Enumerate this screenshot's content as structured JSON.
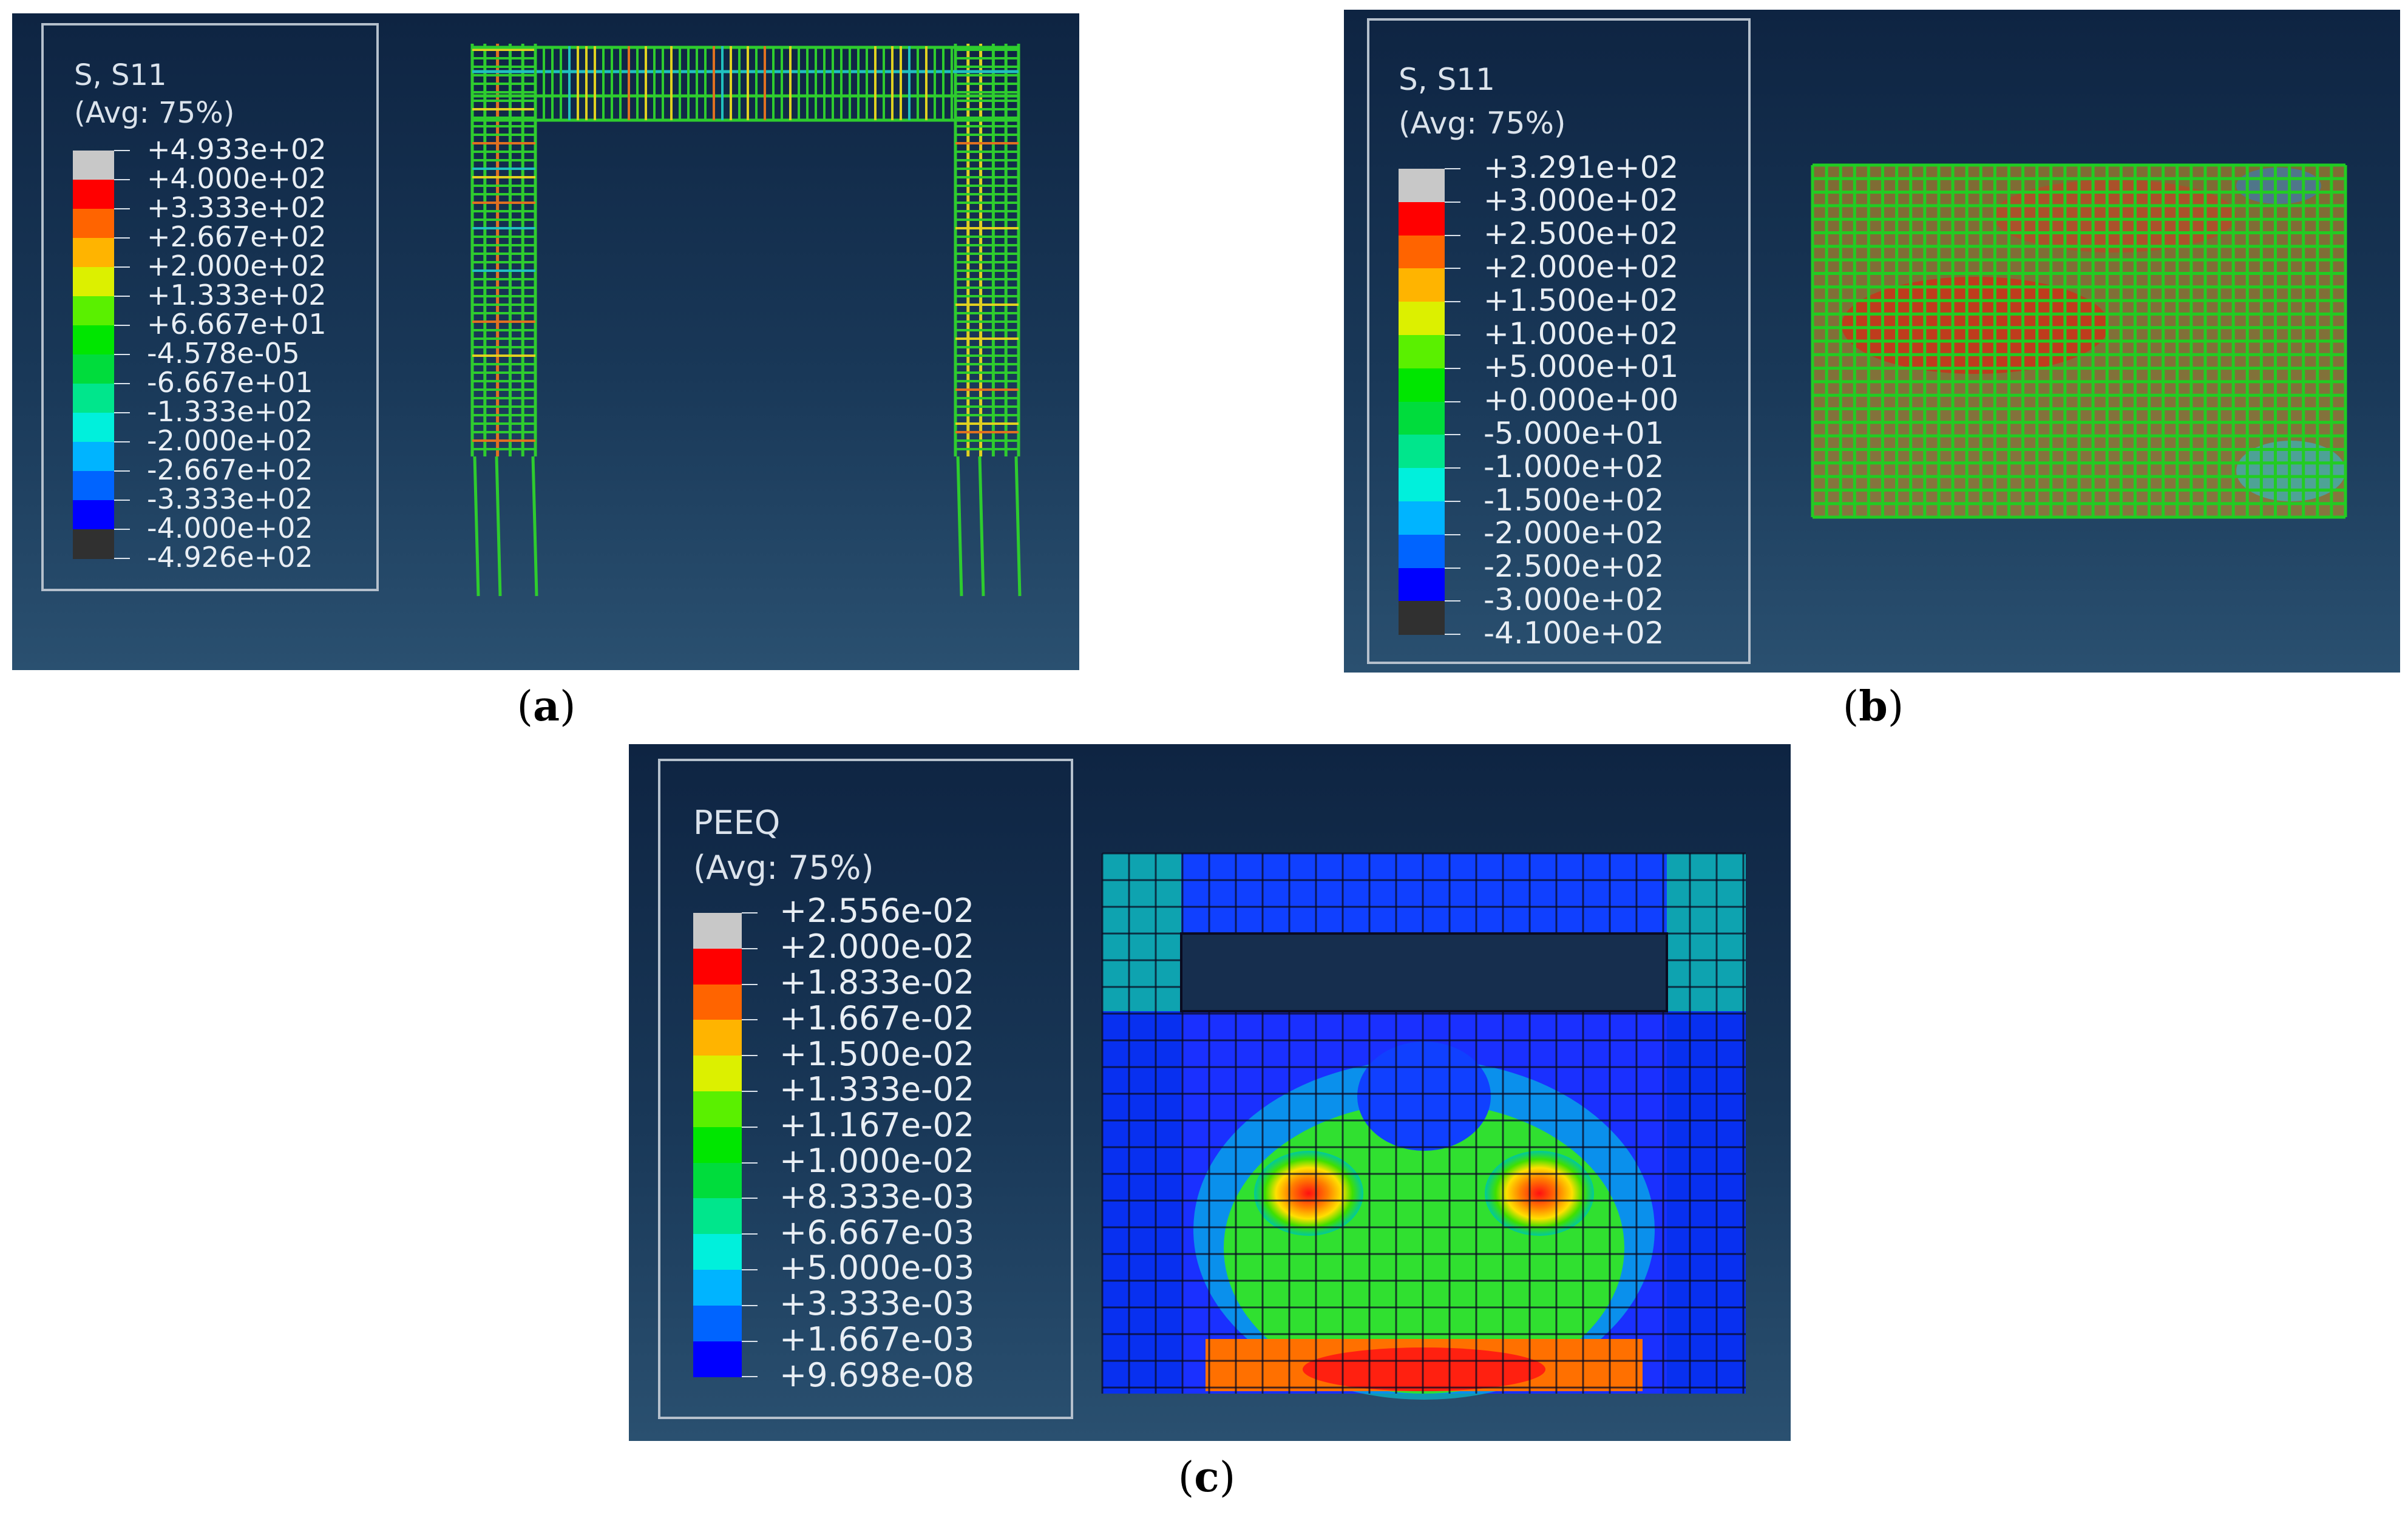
{
  "panels": [
    {
      "id": "a",
      "legend": {
        "variable": "S, S11",
        "averaging": "(Avg: 75%)",
        "colors": [
          "#c8c8c8",
          "#ff0000",
          "#ff6400",
          "#ffb400",
          "#dcf000",
          "#5af000",
          "#00e600",
          "#00dc3c",
          "#00e68c",
          "#00f0dc",
          "#00b4ff",
          "#0064ff",
          "#0000ff",
          "#303030"
        ],
        "values": [
          "+4.933e+02",
          "+4.000e+02",
          "+3.333e+02",
          "+2.667e+02",
          "+2.000e+02",
          "+1.333e+02",
          "+6.667e+01",
          "-4.578e-05",
          "-6.667e+01",
          "-1.333e+02",
          "-2.000e+02",
          "-2.667e+02",
          "-3.333e+02",
          "-4.000e+02",
          "-4.926e+02"
        ]
      },
      "caption_letter": "a"
    },
    {
      "id": "b",
      "legend": {
        "variable": "S, S11",
        "averaging": "(Avg: 75%)",
        "colors": [
          "#c8c8c8",
          "#ff0000",
          "#ff6400",
          "#ffb400",
          "#dcf000",
          "#5af000",
          "#00e600",
          "#00dc3c",
          "#00e68c",
          "#00f0dc",
          "#00b4ff",
          "#0064ff",
          "#0000ff",
          "#303030"
        ],
        "values": [
          "+3.291e+02",
          "+3.000e+02",
          "+2.500e+02",
          "+2.000e+02",
          "+1.500e+02",
          "+1.000e+02",
          "+5.000e+01",
          "+0.000e+00",
          "-5.000e+01",
          "-1.000e+02",
          "-1.500e+02",
          "-2.000e+02",
          "-2.500e+02",
          "-3.000e+02",
          "-4.100e+02"
        ]
      },
      "caption_letter": "b"
    },
    {
      "id": "c",
      "legend": {
        "variable": "PEEQ",
        "averaging": "(Avg: 75%)",
        "colors": [
          "#c8c8c8",
          "#ff0000",
          "#ff6400",
          "#ffb400",
          "#dcf000",
          "#5af000",
          "#00e600",
          "#00dc3c",
          "#00e68c",
          "#00f0dc",
          "#00b4ff",
          "#0064ff",
          "#0000ff"
        ],
        "values": [
          "+2.556e-02",
          "+2.000e-02",
          "+1.833e-02",
          "+1.667e-02",
          "+1.500e-02",
          "+1.333e-02",
          "+1.167e-02",
          "+1.000e-02",
          "+8.333e-03",
          "+6.667e-03",
          "+5.000e-03",
          "+3.333e-03",
          "+1.667e-03",
          "+9.698e-08"
        ]
      },
      "caption_letter": "c"
    }
  ]
}
